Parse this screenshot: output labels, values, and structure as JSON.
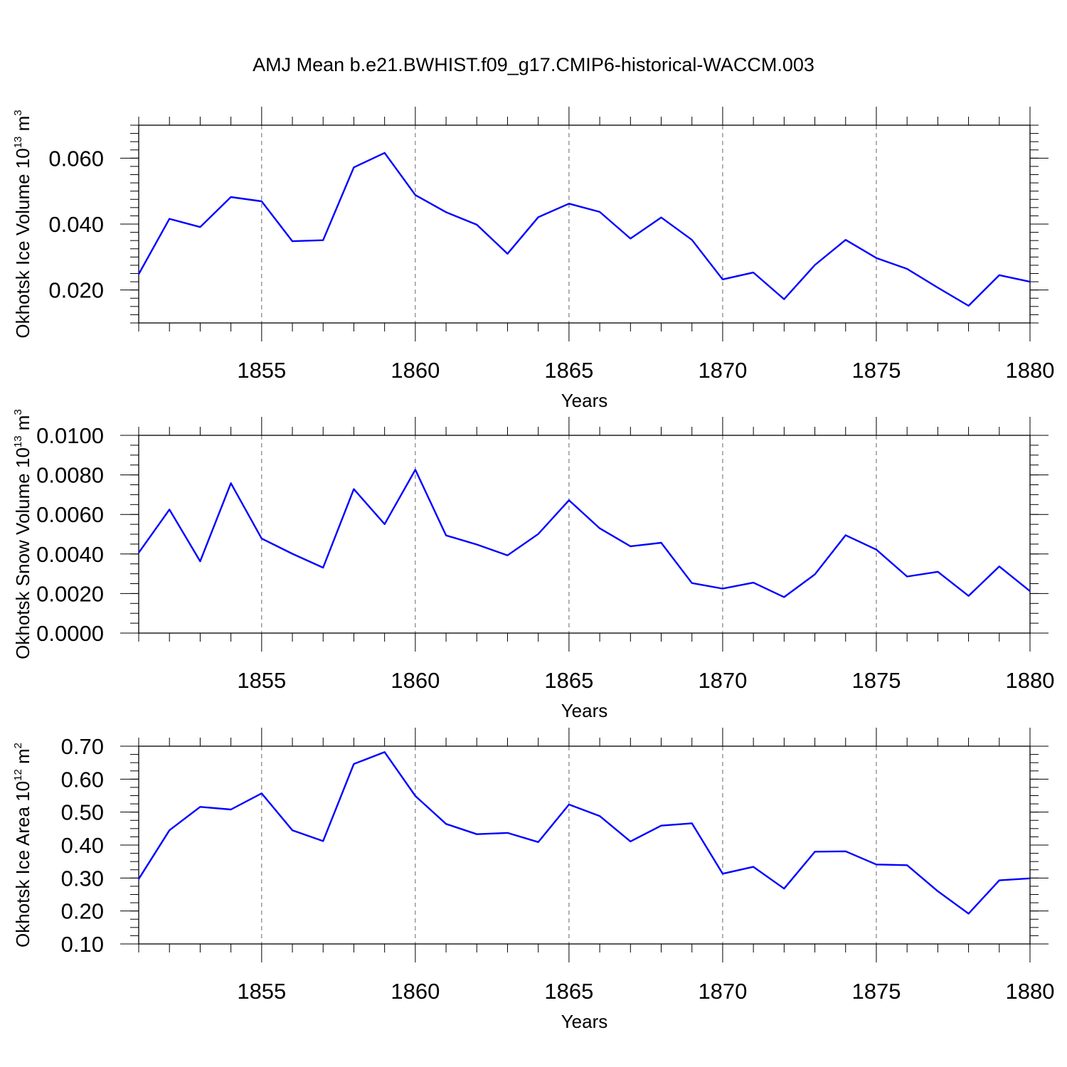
{
  "title": "AMJ Mean b.e21.BWHIST.f09_g17.CMIP6-historical-WACCM.003",
  "colors": {
    "line": "#0000ff",
    "axes": "#000000",
    "grid": "#666666",
    "background": "#ffffff"
  },
  "chart_data": [
    {
      "type": "line",
      "xlabel": "Years",
      "ylabel": {
        "main": "Okhotsk Ice Volume 10",
        "exponent": "13",
        "unit": "m",
        "unit_exponent": "3"
      },
      "xlim": [
        1851,
        1880
      ],
      "ylim": [
        0.01,
        0.07
      ],
      "x_ticks": [
        1855,
        1860,
        1865,
        1870,
        1875,
        1880
      ],
      "x_tick_labels": [
        "1855",
        "1860",
        "1865",
        "1870",
        "1875",
        "1880"
      ],
      "y_ticks": [
        0.02,
        0.04,
        0.06
      ],
      "y_tick_labels": [
        "0.020",
        "0.040",
        "0.060"
      ],
      "grid": "vertical dashed at major x ticks",
      "series": [
        {
          "x": [
            1851,
            1852,
            1853,
            1854,
            1855,
            1856,
            1857,
            1858,
            1859,
            1860,
            1861,
            1862,
            1863,
            1864,
            1865,
            1866,
            1867,
            1868,
            1869,
            1870,
            1871,
            1872,
            1873,
            1874,
            1875,
            1876,
            1877,
            1878,
            1879,
            1880
          ],
          "y": [
            0.0248,
            0.0416,
            0.0391,
            0.0482,
            0.0469,
            0.0348,
            0.0351,
            0.0572,
            0.0616,
            0.0488,
            0.0436,
            0.0398,
            0.031,
            0.0421,
            0.0462,
            0.0437,
            0.0356,
            0.042,
            0.0352,
            0.0232,
            0.0253,
            0.0172,
            0.0276,
            0.0352,
            0.0297,
            0.0264,
            0.0207,
            0.0152,
            0.0245,
            0.0225
          ]
        }
      ]
    },
    {
      "type": "line",
      "xlabel": "Years",
      "ylabel": {
        "main": "Okhotsk Snow Volume 10",
        "exponent": "13",
        "unit": "m",
        "unit_exponent": "3"
      },
      "xlim": [
        1851,
        1880
      ],
      "ylim": [
        0.0,
        0.01
      ],
      "x_ticks": [
        1855,
        1860,
        1865,
        1870,
        1875,
        1880
      ],
      "x_tick_labels": [
        "1855",
        "1860",
        "1865",
        "1870",
        "1875",
        "1880"
      ],
      "y_ticks": [
        0.0,
        0.002,
        0.004,
        0.006,
        0.008,
        0.01
      ],
      "y_tick_labels": [
        "0.0000",
        "0.0020",
        "0.0040",
        "0.0060",
        "0.0080",
        "0.0100"
      ],
      "grid": "vertical dashed at major x ticks",
      "series": [
        {
          "x": [
            1851,
            1852,
            1853,
            1854,
            1855,
            1856,
            1857,
            1858,
            1859,
            1860,
            1861,
            1862,
            1863,
            1864,
            1865,
            1866,
            1867,
            1868,
            1869,
            1870,
            1871,
            1872,
            1873,
            1874,
            1875,
            1876,
            1877,
            1878,
            1879,
            1880
          ],
          "y": [
            0.00406,
            0.00625,
            0.00363,
            0.00758,
            0.00478,
            0.00401,
            0.00331,
            0.00728,
            0.00551,
            0.00826,
            0.00494,
            0.00448,
            0.00393,
            0.00501,
            0.00672,
            0.0053,
            0.00439,
            0.00457,
            0.00253,
            0.00225,
            0.00255,
            0.00182,
            0.00297,
            0.00495,
            0.00422,
            0.00286,
            0.0031,
            0.00188,
            0.00337,
            0.00212
          ]
        }
      ]
    },
    {
      "type": "line",
      "xlabel": "Years",
      "ylabel": {
        "main": "Okhotsk Ice Area 10",
        "exponent": "12",
        "unit": "m",
        "unit_exponent": "2"
      },
      "xlim": [
        1851,
        1880
      ],
      "ylim": [
        0.1,
        0.7
      ],
      "x_ticks": [
        1855,
        1860,
        1865,
        1870,
        1875,
        1880
      ],
      "x_tick_labels": [
        "1855",
        "1860",
        "1865",
        "1870",
        "1875",
        "1880"
      ],
      "y_ticks": [
        0.1,
        0.2,
        0.3,
        0.4,
        0.5,
        0.6,
        0.7
      ],
      "y_tick_labels": [
        "0.10",
        "0.20",
        "0.30",
        "0.40",
        "0.50",
        "0.60",
        "0.70"
      ],
      "grid": "vertical dashed at major x ticks",
      "series": [
        {
          "x": [
            1851,
            1852,
            1853,
            1854,
            1855,
            1856,
            1857,
            1858,
            1859,
            1860,
            1861,
            1862,
            1863,
            1864,
            1865,
            1866,
            1867,
            1868,
            1869,
            1870,
            1871,
            1872,
            1873,
            1874,
            1875,
            1876,
            1877,
            1878,
            1879,
            1880
          ],
          "y": [
            0.297,
            0.445,
            0.516,
            0.508,
            0.557,
            0.445,
            0.412,
            0.646,
            0.682,
            0.549,
            0.464,
            0.433,
            0.437,
            0.409,
            0.523,
            0.488,
            0.411,
            0.459,
            0.466,
            0.313,
            0.334,
            0.268,
            0.38,
            0.381,
            0.341,
            0.339,
            0.26,
            0.192,
            0.293,
            0.299
          ]
        }
      ]
    }
  ]
}
